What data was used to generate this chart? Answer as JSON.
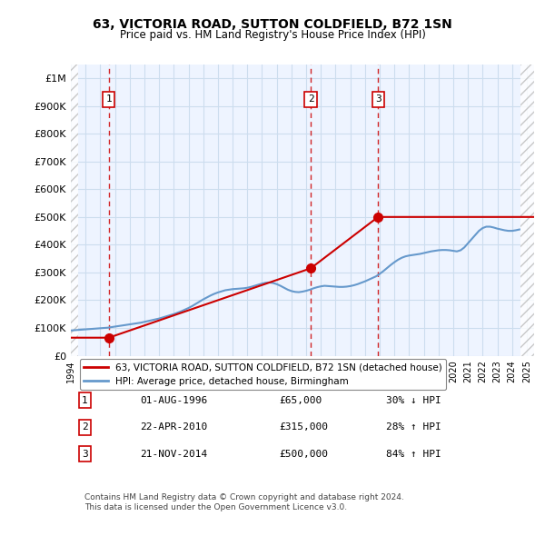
{
  "title": "63, VICTORIA ROAD, SUTTON COLDFIELD, B72 1SN",
  "subtitle": "Price paid vs. HM Land Registry's House Price Index (HPI)",
  "ylabel": "",
  "xlim_start": 1994.0,
  "xlim_end": 2025.5,
  "ylim": [
    0,
    1050000
  ],
  "yticks": [
    0,
    100000,
    200000,
    300000,
    400000,
    500000,
    600000,
    700000,
    800000,
    900000,
    1000000
  ],
  "ytick_labels": [
    "£0",
    "£100K",
    "£200K",
    "£300K",
    "£400K",
    "£500K",
    "£600K",
    "£700K",
    "£800K",
    "£900K",
    "£1M"
  ],
  "sale_dates": [
    1996.58,
    2010.31,
    2014.89
  ],
  "sale_prices": [
    65000,
    315000,
    500000
  ],
  "sale_labels": [
    "1",
    "2",
    "3"
  ],
  "hpi_line_color": "#6699cc",
  "price_line_color": "#cc0000",
  "sale_dot_color": "#cc0000",
  "dashed_vline_color": "#cc0000",
  "hatch_color": "#cccccc",
  "grid_color": "#ccddee",
  "background_color": "#ddeeff",
  "plot_bg_color": "#eef4ff",
  "legend_label_red": "63, VICTORIA ROAD, SUTTON COLDFIELD, B72 1SN (detached house)",
  "legend_label_blue": "HPI: Average price, detached house, Birmingham",
  "table_data": [
    [
      "1",
      "01-AUG-1996",
      "£65,000",
      "30% ↓ HPI"
    ],
    [
      "2",
      "22-APR-2010",
      "£315,000",
      "28% ↑ HPI"
    ],
    [
      "3",
      "21-NOV-2014",
      "£500,000",
      "84% ↑ HPI"
    ]
  ],
  "footnote": "Contains HM Land Registry data © Crown copyright and database right 2024.\nThis data is licensed under the Open Government Licence v3.0.",
  "hpi_years": [
    1994,
    1994.25,
    1994.5,
    1994.75,
    1995,
    1995.25,
    1995.5,
    1995.75,
    1996,
    1996.25,
    1996.5,
    1996.75,
    1997,
    1997.25,
    1997.5,
    1997.75,
    1998,
    1998.25,
    1998.5,
    1998.75,
    1999,
    1999.25,
    1999.5,
    1999.75,
    2000,
    2000.25,
    2000.5,
    2000.75,
    2001,
    2001.25,
    2001.5,
    2001.75,
    2002,
    2002.25,
    2002.5,
    2002.75,
    2003,
    2003.25,
    2003.5,
    2003.75,
    2004,
    2004.25,
    2004.5,
    2004.75,
    2005,
    2005.25,
    2005.5,
    2005.75,
    2006,
    2006.25,
    2006.5,
    2006.75,
    2007,
    2007.25,
    2007.5,
    2007.75,
    2008,
    2008.25,
    2008.5,
    2008.75,
    2009,
    2009.25,
    2009.5,
    2009.75,
    2010,
    2010.25,
    2010.5,
    2010.75,
    2011,
    2011.25,
    2011.5,
    2011.75,
    2012,
    2012.25,
    2012.5,
    2012.75,
    2013,
    2013.25,
    2013.5,
    2013.75,
    2014,
    2014.25,
    2014.5,
    2014.75,
    2015,
    2015.25,
    2015.5,
    2015.75,
    2016,
    2016.25,
    2016.5,
    2016.75,
    2017,
    2017.25,
    2017.5,
    2017.75,
    2018,
    2018.25,
    2018.5,
    2018.75,
    2019,
    2019.25,
    2019.5,
    2019.75,
    2020,
    2020.25,
    2020.5,
    2020.75,
    2021,
    2021.25,
    2021.5,
    2021.75,
    2022,
    2022.25,
    2022.5,
    2022.75,
    2023,
    2023.25,
    2023.5,
    2023.75,
    2024,
    2024.25,
    2024.5
  ],
  "hpi_values": [
    91000,
    92000,
    93000,
    94000,
    95000,
    96000,
    97000,
    98000,
    99000,
    100000,
    101000,
    103000,
    105000,
    107000,
    109000,
    111000,
    113000,
    115000,
    117000,
    119000,
    122000,
    125000,
    128000,
    131000,
    134000,
    138000,
    142000,
    146000,
    150000,
    155000,
    160000,
    166000,
    172000,
    179000,
    187000,
    195000,
    203000,
    210000,
    217000,
    223000,
    228000,
    232000,
    236000,
    238000,
    240000,
    241000,
    242000,
    243000,
    245000,
    248000,
    252000,
    256000,
    260000,
    263000,
    264000,
    262000,
    258000,
    252000,
    245000,
    238000,
    233000,
    230000,
    229000,
    231000,
    234000,
    238000,
    243000,
    247000,
    250000,
    252000,
    251000,
    250000,
    249000,
    248000,
    248000,
    249000,
    251000,
    254000,
    258000,
    263000,
    268000,
    274000,
    280000,
    286000,
    295000,
    305000,
    316000,
    327000,
    337000,
    346000,
    353000,
    358000,
    361000,
    363000,
    365000,
    367000,
    370000,
    373000,
    376000,
    378000,
    380000,
    381000,
    381000,
    380000,
    378000,
    376000,
    380000,
    390000,
    405000,
    420000,
    435000,
    450000,
    460000,
    465000,
    465000,
    462000,
    458000,
    455000,
    452000,
    450000,
    450000,
    452000,
    455000
  ],
  "price_line_years": [
    1994.0,
    1996.58,
    1996.58,
    2010.31,
    2010.31,
    2014.89,
    2014.89,
    2025.0
  ],
  "price_line_values": [
    65000,
    65000,
    65000,
    315000,
    315000,
    500000,
    500000,
    500000
  ]
}
